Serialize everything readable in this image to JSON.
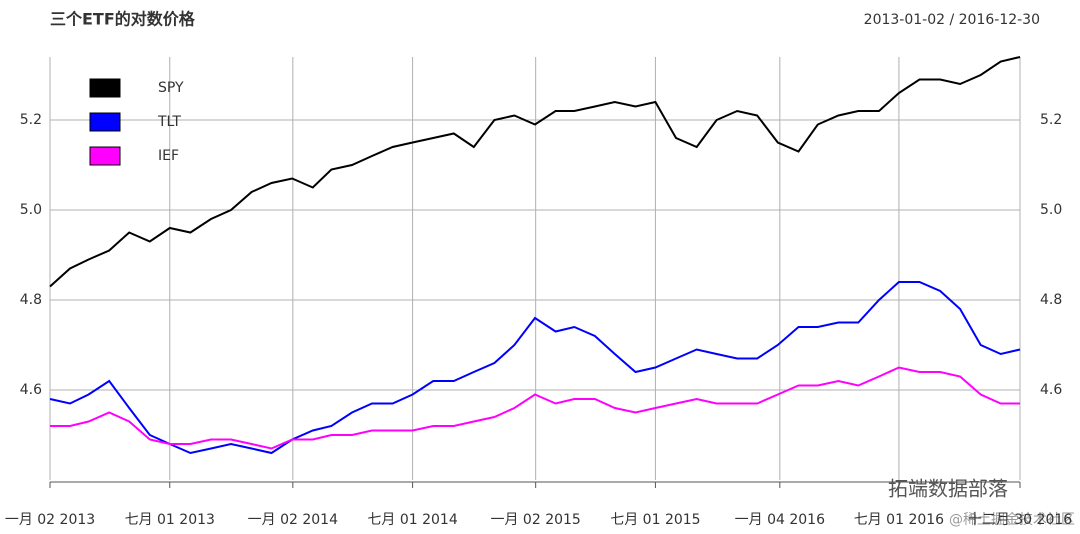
{
  "chart_data": {
    "type": "line",
    "title": "三个ETF的对数价格",
    "subtitle": "2013-01-02 / 2016-12-30",
    "annotations": [
      "拓端数据部落",
      "@稀土掘金技术社区"
    ],
    "x": [
      "2013-01-02",
      "2013-02-01",
      "2013-03-01",
      "2013-04-01",
      "2013-05-01",
      "2013-06-01",
      "2013-07-01",
      "2013-08-01",
      "2013-09-01",
      "2013-10-01",
      "2013-11-01",
      "2013-12-01",
      "2014-01-01",
      "2014-02-01",
      "2014-03-01",
      "2014-04-01",
      "2014-05-01",
      "2014-06-01",
      "2014-07-01",
      "2014-08-01",
      "2014-09-01",
      "2014-10-01",
      "2014-11-01",
      "2014-12-01",
      "2015-01-01",
      "2015-02-01",
      "2015-03-01",
      "2015-04-01",
      "2015-05-01",
      "2015-06-01",
      "2015-07-01",
      "2015-08-01",
      "2015-09-01",
      "2015-10-01",
      "2015-11-01",
      "2015-12-01",
      "2016-01-01",
      "2016-02-01",
      "2016-03-01",
      "2016-04-01",
      "2016-05-01",
      "2016-06-01",
      "2016-07-01",
      "2016-08-01",
      "2016-09-01",
      "2016-10-01",
      "2016-11-01",
      "2016-12-01",
      "2016-12-30"
    ],
    "series": [
      {
        "name": "SPY",
        "color": "#000000",
        "values": [
          4.83,
          4.87,
          4.89,
          4.91,
          4.95,
          4.93,
          4.96,
          4.95,
          4.98,
          5.0,
          5.04,
          5.06,
          5.07,
          5.05,
          5.09,
          5.1,
          5.12,
          5.14,
          5.15,
          5.16,
          5.17,
          5.14,
          5.2,
          5.21,
          5.19,
          5.22,
          5.22,
          5.23,
          5.24,
          5.23,
          5.24,
          5.16,
          5.14,
          5.2,
          5.22,
          5.21,
          5.15,
          5.13,
          5.19,
          5.21,
          5.22,
          5.22,
          5.26,
          5.29,
          5.29,
          5.28,
          5.3,
          5.33,
          5.34
        ]
      },
      {
        "name": "TLT",
        "color": "#0000ff",
        "values": [
          4.58,
          4.57,
          4.59,
          4.62,
          4.56,
          4.5,
          4.48,
          4.46,
          4.47,
          4.48,
          4.47,
          4.46,
          4.49,
          4.51,
          4.52,
          4.55,
          4.57,
          4.57,
          4.59,
          4.62,
          4.62,
          4.64,
          4.66,
          4.7,
          4.76,
          4.73,
          4.74,
          4.72,
          4.68,
          4.64,
          4.65,
          4.67,
          4.69,
          4.68,
          4.67,
          4.67,
          4.7,
          4.74,
          4.74,
          4.75,
          4.75,
          4.8,
          4.84,
          4.84,
          4.82,
          4.78,
          4.7,
          4.68,
          4.69
        ]
      },
      {
        "name": "IEF",
        "color": "#ff00ff",
        "values": [
          4.52,
          4.52,
          4.53,
          4.55,
          4.53,
          4.49,
          4.48,
          4.48,
          4.49,
          4.49,
          4.48,
          4.47,
          4.49,
          4.49,
          4.5,
          4.5,
          4.51,
          4.51,
          4.51,
          4.52,
          4.52,
          4.53,
          4.54,
          4.56,
          4.59,
          4.57,
          4.58,
          4.58,
          4.56,
          4.55,
          4.56,
          4.57,
          4.58,
          4.57,
          4.57,
          4.57,
          4.59,
          4.61,
          4.61,
          4.62,
          4.61,
          4.63,
          4.65,
          4.64,
          4.64,
          4.63,
          4.59,
          4.57,
          4.57
        ]
      }
    ],
    "xlim": [
      "2013-01-02",
      "2016-12-30"
    ],
    "xticks": [
      {
        "value": "2013-01-02",
        "label": "一月 02 2013"
      },
      {
        "value": "2013-07-01",
        "label": "七月 01 2013"
      },
      {
        "value": "2014-01-02",
        "label": "一月 02 2014"
      },
      {
        "value": "2014-07-01",
        "label": "七月 01 2014"
      },
      {
        "value": "2015-01-02",
        "label": "一月 02 2015"
      },
      {
        "value": "2015-07-01",
        "label": "七月 01 2015"
      },
      {
        "value": "2016-01-04",
        "label": "一月 04 2016"
      },
      {
        "value": "2016-07-01",
        "label": "七月 01 2016"
      },
      {
        "value": "2016-12-30",
        "label": "十二月 30 2016"
      }
    ],
    "ylim": [
      4.4,
      5.34
    ],
    "yticks": [
      {
        "value": 4.6,
        "label": "4.6"
      },
      {
        "value": 4.8,
        "label": "4.8"
      },
      {
        "value": 5.0,
        "label": "5.0"
      },
      {
        "value": 5.2,
        "label": "5.2"
      }
    ],
    "grid": true,
    "legend": "top-left"
  }
}
